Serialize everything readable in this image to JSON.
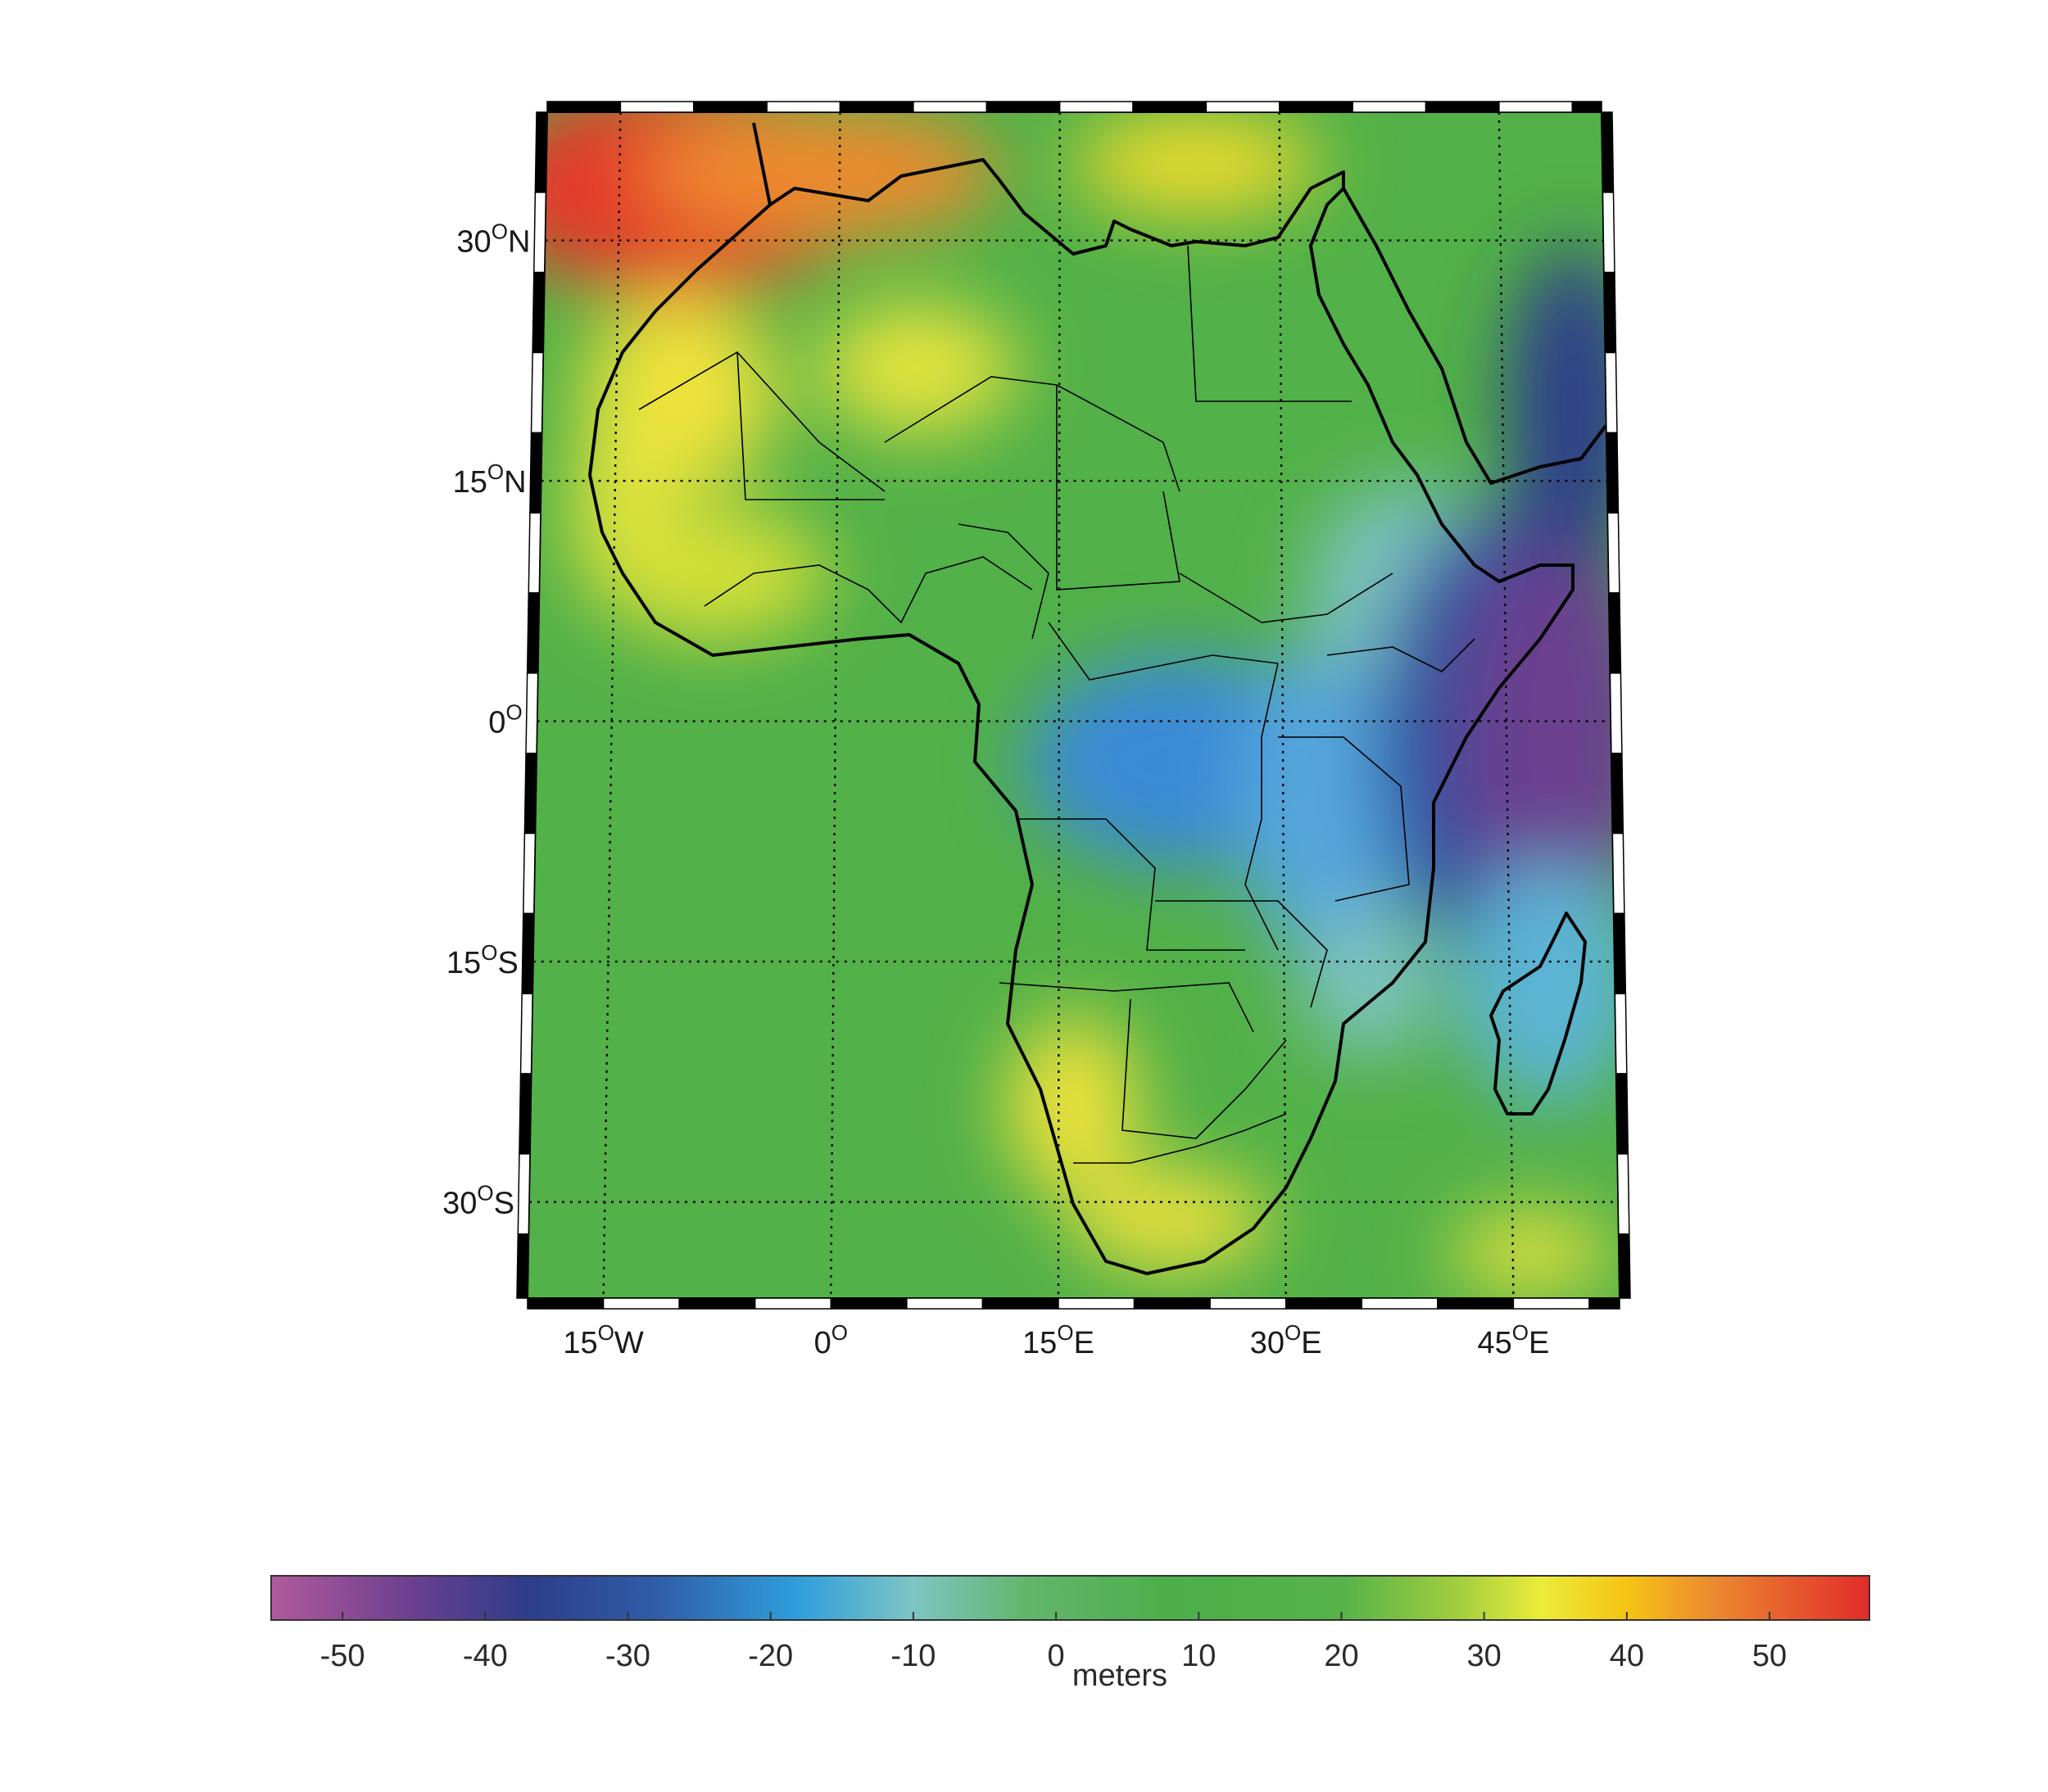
{
  "map": {
    "lat_labels": [
      {
        "lat": 30,
        "deg": "30",
        "hemi": "N"
      },
      {
        "lat": 15,
        "deg": "15",
        "hemi": "N"
      },
      {
        "lat": 0,
        "deg": "0",
        "hemi": ""
      },
      {
        "lat": -15,
        "deg": "15",
        "hemi": "S"
      },
      {
        "lat": -30,
        "deg": "30",
        "hemi": "S"
      }
    ],
    "lon_labels": [
      {
        "lon": -15,
        "deg": "15",
        "hemi": "W"
      },
      {
        "lon": 0,
        "deg": "0",
        "hemi": ""
      },
      {
        "lon": 15,
        "deg": "15",
        "hemi": "E"
      },
      {
        "lon": 30,
        "deg": "30",
        "hemi": "E"
      },
      {
        "lon": 45,
        "deg": "45",
        "hemi": "E"
      }
    ],
    "extent": {
      "lon_min": -20,
      "lon_max": 52,
      "lat_min": -36,
      "lat_max": 38
    }
  },
  "colorbar": {
    "label": "meters",
    "range": [
      -55,
      57
    ],
    "ticks": [
      "-50",
      "-40",
      "-30",
      "-20",
      "-10",
      "0",
      "10",
      "20",
      "30",
      "40",
      "50"
    ],
    "stops": [
      {
        "value": -55,
        "color": "#b05a9b"
      },
      {
        "value": -45,
        "color": "#6a3f8f"
      },
      {
        "value": -37,
        "color": "#2d3d8a"
      },
      {
        "value": -28,
        "color": "#2f5da8"
      },
      {
        "value": -18,
        "color": "#2f9fdc"
      },
      {
        "value": -10,
        "color": "#7ec5c4"
      },
      {
        "value": -2,
        "color": "#62b66a"
      },
      {
        "value": 8,
        "color": "#4caf4a"
      },
      {
        "value": 20,
        "color": "#55b34a"
      },
      {
        "value": 28,
        "color": "#a0cd3e"
      },
      {
        "value": 34,
        "color": "#ecec3a"
      },
      {
        "value": 40,
        "color": "#f6c414"
      },
      {
        "value": 46,
        "color": "#ec8a30"
      },
      {
        "value": 57,
        "color": "#e22b2a"
      }
    ]
  }
}
